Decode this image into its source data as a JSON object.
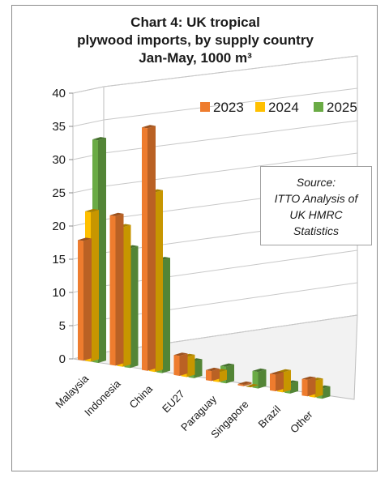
{
  "chart_data": {
    "type": "bar",
    "title_lines": [
      "Chart 4: UK tropical",
      "plywood imports, by supply country",
      "Jan-May, 1000 m³"
    ],
    "categories": [
      "Malaysia",
      "Indonesia",
      "China",
      "EU27",
      "Paraguay",
      "Singapore",
      "Brazil",
      "Other"
    ],
    "series": [
      {
        "name": "2023",
        "values": [
          18.0,
          22.5,
          36.5,
          3.0,
          1.5,
          0.2,
          2.5,
          2.5
        ]
      },
      {
        "name": "2024",
        "values": [
          22.5,
          21.0,
          27.0,
          3.0,
          1.5,
          0.0,
          3.0,
          2.5
        ]
      },
      {
        "name": "2025",
        "values": [
          33.5,
          18.0,
          17.0,
          2.5,
          2.5,
          2.5,
          1.5,
          1.5
        ]
      }
    ],
    "ylim": [
      0,
      40
    ],
    "yticks": [
      "0",
      "5",
      "10",
      "15",
      "20",
      "25",
      "30",
      "35",
      "40"
    ],
    "grid": true,
    "legend_position": "top-right",
    "colors": {
      "2023": "#ee7c2e",
      "2024": "#ffc000",
      "2025": "#6aab45"
    },
    "annotation_lines": [
      "Source:",
      "ITTO Analysis of",
      "UK HMRC",
      "Statistics"
    ]
  }
}
